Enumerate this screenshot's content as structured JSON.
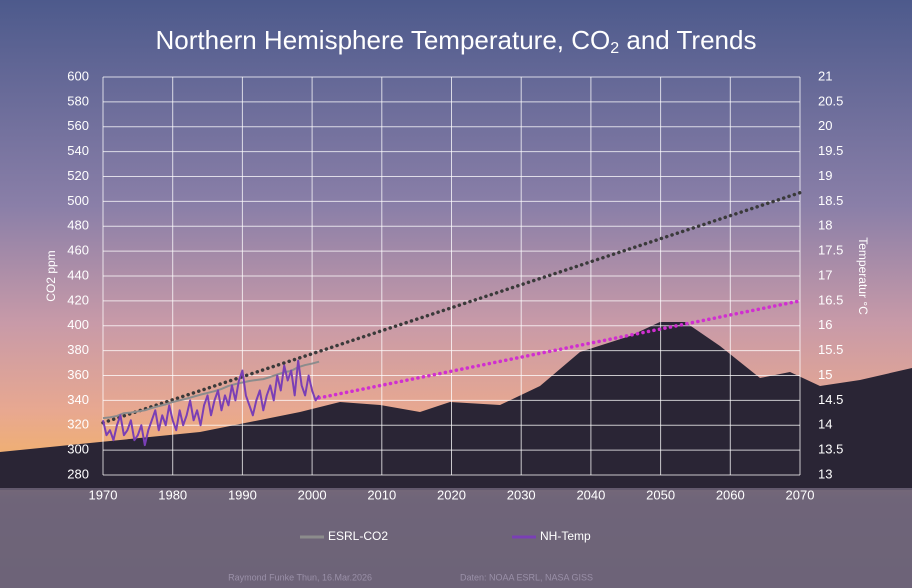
{
  "chart_data": {
    "type": "line",
    "title_parts": [
      "Northern Hemisphere Temperature,  CO",
      "2",
      " and Trends"
    ],
    "ylabel": "CO2 ppm",
    "y2label": "Temperatur °C",
    "xlim": [
      1970,
      2070
    ],
    "xticks": [
      1970,
      1980,
      1990,
      2000,
      2010,
      2020,
      2030,
      2040,
      2050,
      2060,
      2070
    ],
    "ylim": [
      280,
      600
    ],
    "yticks": [
      280,
      300,
      320,
      340,
      360,
      380,
      400,
      420,
      440,
      460,
      480,
      500,
      520,
      540,
      560,
      580,
      600
    ],
    "y2lim": [
      13,
      21
    ],
    "y2ticks": [
      13,
      13.5,
      14,
      14.5,
      15,
      15.5,
      16,
      16.5,
      17,
      17.5,
      18,
      18.5,
      19,
      19.5,
      20,
      20.5,
      21
    ],
    "grid": true,
    "series": [
      {
        "name": "ESRL-CO2",
        "color": "#8c8c8c",
        "x": [
          1970,
          1971,
          1972,
          1973,
          1974,
          1975,
          1976,
          1977,
          1978,
          1979,
          1980,
          1981,
          1982,
          1983,
          1984,
          1985,
          1986,
          1987,
          1988,
          1989,
          1990,
          1991,
          1992,
          1993,
          1994,
          1995,
          1996,
          1997,
          1998,
          1999,
          2000,
          2001
        ],
        "values": [
          325.7,
          326.3,
          327.5,
          329.7,
          330.2,
          331.1,
          332.0,
          333.8,
          335.4,
          336.8,
          338.7,
          340.1,
          341.4,
          343.0,
          344.6,
          346.0,
          347.4,
          349.2,
          351.6,
          353.1,
          354.4,
          355.6,
          356.4,
          357.1,
          358.8,
          360.8,
          362.6,
          363.7,
          366.7,
          368.4,
          369.6,
          371.1
        ]
      },
      {
        "name": "NH-Temp",
        "color": "#7a3fb5",
        "axis": "y2",
        "x": [
          1970,
          1970.5,
          1971,
          1971.5,
          1972,
          1972.5,
          1973,
          1973.5,
          1974,
          1974.5,
          1975,
          1975.5,
          1976,
          1976.5,
          1977,
          1977.5,
          1978,
          1978.5,
          1979,
          1979.5,
          1980,
          1980.5,
          1981,
          1981.5,
          1982,
          1982.5,
          1983,
          1983.5,
          1984,
          1984.5,
          1985,
          1985.5,
          1986,
          1986.5,
          1987,
          1987.5,
          1988,
          1988.5,
          1989,
          1989.5,
          1990,
          1990.5,
          1991,
          1991.5,
          1992,
          1992.5,
          1993,
          1993.5,
          1994,
          1994.5,
          1995,
          1995.5,
          1996,
          1996.5,
          1997,
          1997.5,
          1998,
          1998.5,
          1999,
          1999.5,
          2000,
          2000.5,
          2001
        ],
        "values": [
          14.1,
          13.8,
          13.9,
          13.7,
          14.0,
          14.2,
          13.8,
          13.9,
          14.1,
          13.7,
          13.8,
          14.0,
          13.6,
          13.9,
          14.1,
          14.3,
          13.9,
          14.2,
          14.0,
          14.4,
          14.1,
          13.9,
          14.3,
          14.0,
          14.2,
          14.5,
          14.1,
          14.3,
          14.0,
          14.4,
          14.6,
          14.2,
          14.5,
          14.7,
          14.3,
          14.6,
          14.4,
          14.8,
          14.5,
          14.9,
          15.1,
          14.6,
          14.4,
          14.2,
          14.5,
          14.7,
          14.3,
          14.6,
          14.8,
          14.5,
          15.0,
          14.7,
          15.2,
          14.9,
          15.1,
          14.6,
          15.3,
          14.8,
          14.6,
          15.0,
          14.7,
          14.5,
          14.6
        ]
      }
    ],
    "trends": [
      {
        "color": "#3a3a3a",
        "x": [
          1970,
          2070
        ],
        "values": [
          322,
          507
        ]
      },
      {
        "color": "#d02fd0",
        "axis": "y2",
        "x": [
          2001,
          2070
        ],
        "values": [
          14.55,
          16.5
        ]
      }
    ],
    "footer": [
      "Raymond Funke Thun, 16.Mar.2026",
      "Daten: NOAA ESRL, NASA GISS"
    ]
  }
}
